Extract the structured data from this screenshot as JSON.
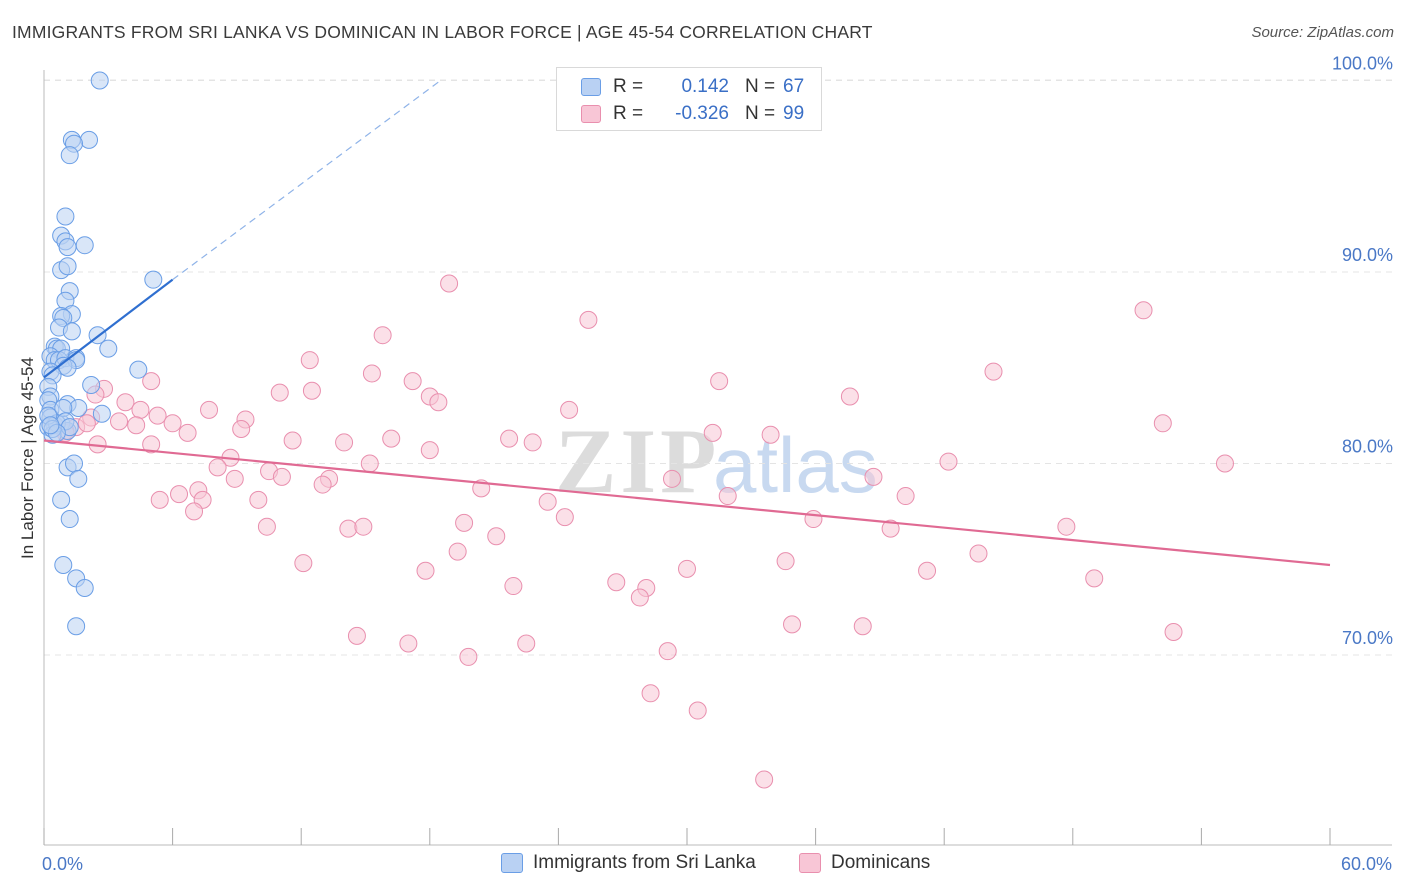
{
  "title": "IMMIGRANTS FROM SRI LANKA VS DOMINICAN IN LABOR FORCE | AGE 45-54 CORRELATION CHART",
  "source": "Source: ZipAtlas.com",
  "watermark": {
    "zip": "ZIP",
    "atlas": "atlas"
  },
  "legend_top": [
    {
      "r_label": "R =",
      "r_value": "0.142",
      "n_label": "N =",
      "n_value": "67",
      "color": "#6a9ee6",
      "fill": "#b9d1f3"
    },
    {
      "r_label": "R =",
      "r_value": "-0.326",
      "n_label": "N =",
      "n_value": "99",
      "color": "#e98fae",
      "fill": "#f8c6d6"
    }
  ],
  "legend_bottom": [
    {
      "label": "Immigrants from Sri Lanka"
    },
    {
      "label": "Dominicans"
    }
  ],
  "chart_data": {
    "type": "scatter",
    "ylabel": "In Labor Force | Age 45-54",
    "xlabel": "",
    "xlim": [
      0,
      60
    ],
    "ylim": [
      61.5,
      101.5
    ],
    "x_tick_labels": [
      "0.0%",
      "60.0%"
    ],
    "y_ticks": [
      70,
      80,
      90,
      100
    ],
    "y_tick_labels": [
      "70.0%",
      "80.0%",
      "90.0%",
      "100.0%"
    ],
    "grid": true,
    "legend_position": "top-center",
    "series": [
      {
        "name": "Immigrants from Sri Lanka",
        "color": "#6a9ee6",
        "fill": "#b9d1f3",
        "trend": {
          "x": [
            0,
            6
          ],
          "y": [
            84.5,
            89.6
          ],
          "extended_to": [
            18.5,
            100.0
          ]
        },
        "points": [
          [
            2.6,
            100.0
          ],
          [
            1.3,
            96.9
          ],
          [
            2.1,
            96.9
          ],
          [
            1.4,
            96.7
          ],
          [
            1.2,
            96.1
          ],
          [
            1.0,
            92.9
          ],
          [
            0.8,
            91.9
          ],
          [
            1.0,
            91.6
          ],
          [
            1.1,
            91.3
          ],
          [
            1.9,
            91.4
          ],
          [
            0.8,
            90.1
          ],
          [
            1.1,
            90.3
          ],
          [
            5.1,
            89.6
          ],
          [
            1.2,
            89.0
          ],
          [
            1.0,
            88.5
          ],
          [
            1.3,
            87.8
          ],
          [
            0.8,
            87.7
          ],
          [
            0.9,
            87.6
          ],
          [
            0.7,
            87.1
          ],
          [
            1.3,
            86.9
          ],
          [
            2.5,
            86.7
          ],
          [
            3.0,
            86.0
          ],
          [
            0.5,
            86.1
          ],
          [
            0.6,
            86.0
          ],
          [
            0.8,
            86.0
          ],
          [
            0.3,
            85.6
          ],
          [
            0.5,
            85.4
          ],
          [
            0.7,
            85.4
          ],
          [
            1.0,
            85.5
          ],
          [
            1.5,
            85.5
          ],
          [
            1.5,
            85.4
          ],
          [
            0.9,
            85.1
          ],
          [
            1.1,
            85.0
          ],
          [
            0.3,
            84.8
          ],
          [
            0.4,
            84.6
          ],
          [
            4.4,
            84.9
          ],
          [
            0.2,
            84.0
          ],
          [
            2.2,
            84.1
          ],
          [
            0.3,
            83.5
          ],
          [
            0.2,
            83.3
          ],
          [
            2.7,
            82.6
          ],
          [
            1.1,
            83.1
          ],
          [
            0.3,
            82.8
          ],
          [
            1.6,
            82.9
          ],
          [
            0.3,
            82.4
          ],
          [
            0.5,
            82.0
          ],
          [
            0.8,
            82.1
          ],
          [
            0.2,
            81.9
          ],
          [
            1.1,
            81.7
          ],
          [
            0.4,
            81.5
          ],
          [
            1.1,
            79.8
          ],
          [
            1.4,
            80.0
          ],
          [
            1.6,
            79.2
          ],
          [
            0.8,
            78.1
          ],
          [
            1.2,
            77.1
          ],
          [
            0.9,
            74.7
          ],
          [
            1.5,
            74.0
          ],
          [
            1.9,
            73.5
          ],
          [
            1.5,
            71.5
          ],
          [
            0.6,
            82.1
          ],
          [
            0.2,
            82.5
          ],
          [
            0.4,
            81.8
          ],
          [
            0.9,
            82.9
          ],
          [
            1.0,
            82.2
          ],
          [
            1.2,
            81.9
          ],
          [
            0.6,
            81.6
          ],
          [
            0.3,
            82.0
          ]
        ]
      },
      {
        "name": "Dominicans",
        "color": "#e98fae",
        "fill": "#f8c6d6",
        "trend": {
          "x": [
            0,
            60
          ],
          "y": [
            81.2,
            74.7
          ]
        },
        "points": [
          [
            18.9,
            89.4
          ],
          [
            51.3,
            88.0
          ],
          [
            25.4,
            87.5
          ],
          [
            15.8,
            86.7
          ],
          [
            12.4,
            85.4
          ],
          [
            15.3,
            84.7
          ],
          [
            31.5,
            84.3
          ],
          [
            17.2,
            84.3
          ],
          [
            5.0,
            84.3
          ],
          [
            2.8,
            83.9
          ],
          [
            12.5,
            83.8
          ],
          [
            11.0,
            83.7
          ],
          [
            44.3,
            84.8
          ],
          [
            18.0,
            83.5
          ],
          [
            37.6,
            83.5
          ],
          [
            18.4,
            83.2
          ],
          [
            2.4,
            83.6
          ],
          [
            3.8,
            83.2
          ],
          [
            4.5,
            82.8
          ],
          [
            5.3,
            82.5
          ],
          [
            7.7,
            82.8
          ],
          [
            24.5,
            82.8
          ],
          [
            2.2,
            82.4
          ],
          [
            3.5,
            82.2
          ],
          [
            6.0,
            82.1
          ],
          [
            9.4,
            82.3
          ],
          [
            52.2,
            82.1
          ],
          [
            31.2,
            81.6
          ],
          [
            33.9,
            81.5
          ],
          [
            6.7,
            81.6
          ],
          [
            5.0,
            81.0
          ],
          [
            11.6,
            81.2
          ],
          [
            14.0,
            81.1
          ],
          [
            16.2,
            81.3
          ],
          [
            21.7,
            81.3
          ],
          [
            22.8,
            81.1
          ],
          [
            2.5,
            81.0
          ],
          [
            8.7,
            80.3
          ],
          [
            18.0,
            80.7
          ],
          [
            0.5,
            82.0
          ],
          [
            1.5,
            81.9
          ],
          [
            1.0,
            81.7
          ],
          [
            42.2,
            80.1
          ],
          [
            55.1,
            80.0
          ],
          [
            15.2,
            80.0
          ],
          [
            8.1,
            79.8
          ],
          [
            10.5,
            79.6
          ],
          [
            11.1,
            79.3
          ],
          [
            13.3,
            79.2
          ],
          [
            8.9,
            79.2
          ],
          [
            29.3,
            79.2
          ],
          [
            38.7,
            79.3
          ],
          [
            7.2,
            78.6
          ],
          [
            13.0,
            78.9
          ],
          [
            20.4,
            78.7
          ],
          [
            23.5,
            78.0
          ],
          [
            31.9,
            78.3
          ],
          [
            40.2,
            78.3
          ],
          [
            6.3,
            78.4
          ],
          [
            7.4,
            78.1
          ],
          [
            10.0,
            78.1
          ],
          [
            5.4,
            78.1
          ],
          [
            7.0,
            77.5
          ],
          [
            10.4,
            76.7
          ],
          [
            14.2,
            76.6
          ],
          [
            14.9,
            76.7
          ],
          [
            19.6,
            76.9
          ],
          [
            24.3,
            77.2
          ],
          [
            35.9,
            77.1
          ],
          [
            39.5,
            76.6
          ],
          [
            47.7,
            76.7
          ],
          [
            21.1,
            76.2
          ],
          [
            12.1,
            74.8
          ],
          [
            17.8,
            74.4
          ],
          [
            19.3,
            75.4
          ],
          [
            34.6,
            74.9
          ],
          [
            43.6,
            75.3
          ],
          [
            41.2,
            74.4
          ],
          [
            49.0,
            74.0
          ],
          [
            30.0,
            74.5
          ],
          [
            21.9,
            73.6
          ],
          [
            26.7,
            73.8
          ],
          [
            28.1,
            73.5
          ],
          [
            27.8,
            73.0
          ],
          [
            34.9,
            71.6
          ],
          [
            38.2,
            71.5
          ],
          [
            14.6,
            71.0
          ],
          [
            17.0,
            70.6
          ],
          [
            22.5,
            70.6
          ],
          [
            52.7,
            71.2
          ],
          [
            19.8,
            69.9
          ],
          [
            29.1,
            70.2
          ],
          [
            28.3,
            68.0
          ],
          [
            30.5,
            67.1
          ],
          [
            33.6,
            63.5
          ],
          [
            1.0,
            81.6
          ],
          [
            2.0,
            82.1
          ],
          [
            4.3,
            82.0
          ],
          [
            9.2,
            81.8
          ]
        ]
      }
    ]
  }
}
